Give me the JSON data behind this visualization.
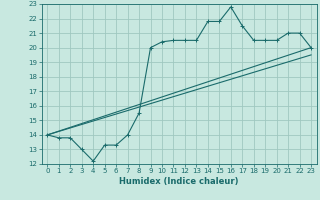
{
  "xlabel": "Humidex (Indice chaleur)",
  "xlim": [
    -0.5,
    23.5
  ],
  "ylim": [
    12,
    23
  ],
  "yticks": [
    12,
    13,
    14,
    15,
    16,
    17,
    18,
    19,
    20,
    21,
    22,
    23
  ],
  "xticks": [
    0,
    1,
    2,
    3,
    4,
    5,
    6,
    7,
    8,
    9,
    10,
    11,
    12,
    13,
    14,
    15,
    16,
    17,
    18,
    19,
    20,
    21,
    22,
    23
  ],
  "bg_color": "#c8e8e0",
  "grid_color": "#a0c8c0",
  "line_color": "#1a6b6b",
  "line1_x": [
    0,
    1,
    2,
    3,
    4,
    5,
    6,
    7,
    8,
    9,
    10,
    11,
    12,
    13,
    14,
    15,
    16,
    17,
    18,
    19,
    20,
    21,
    22,
    23
  ],
  "line1_y": [
    14.0,
    13.8,
    13.8,
    13.0,
    12.2,
    13.3,
    13.3,
    14.0,
    15.5,
    20.0,
    20.4,
    20.5,
    20.5,
    20.5,
    21.8,
    21.8,
    22.8,
    21.5,
    20.5,
    20.5,
    20.5,
    21.0,
    21.0,
    20.0
  ],
  "line2_x": [
    0,
    23
  ],
  "line2_y": [
    14.0,
    20.0
  ],
  "line3_x": [
    0,
    23
  ],
  "line3_y": [
    14.0,
    19.5
  ],
  "tick_fontsize": 5.0,
  "xlabel_fontsize": 6.0
}
